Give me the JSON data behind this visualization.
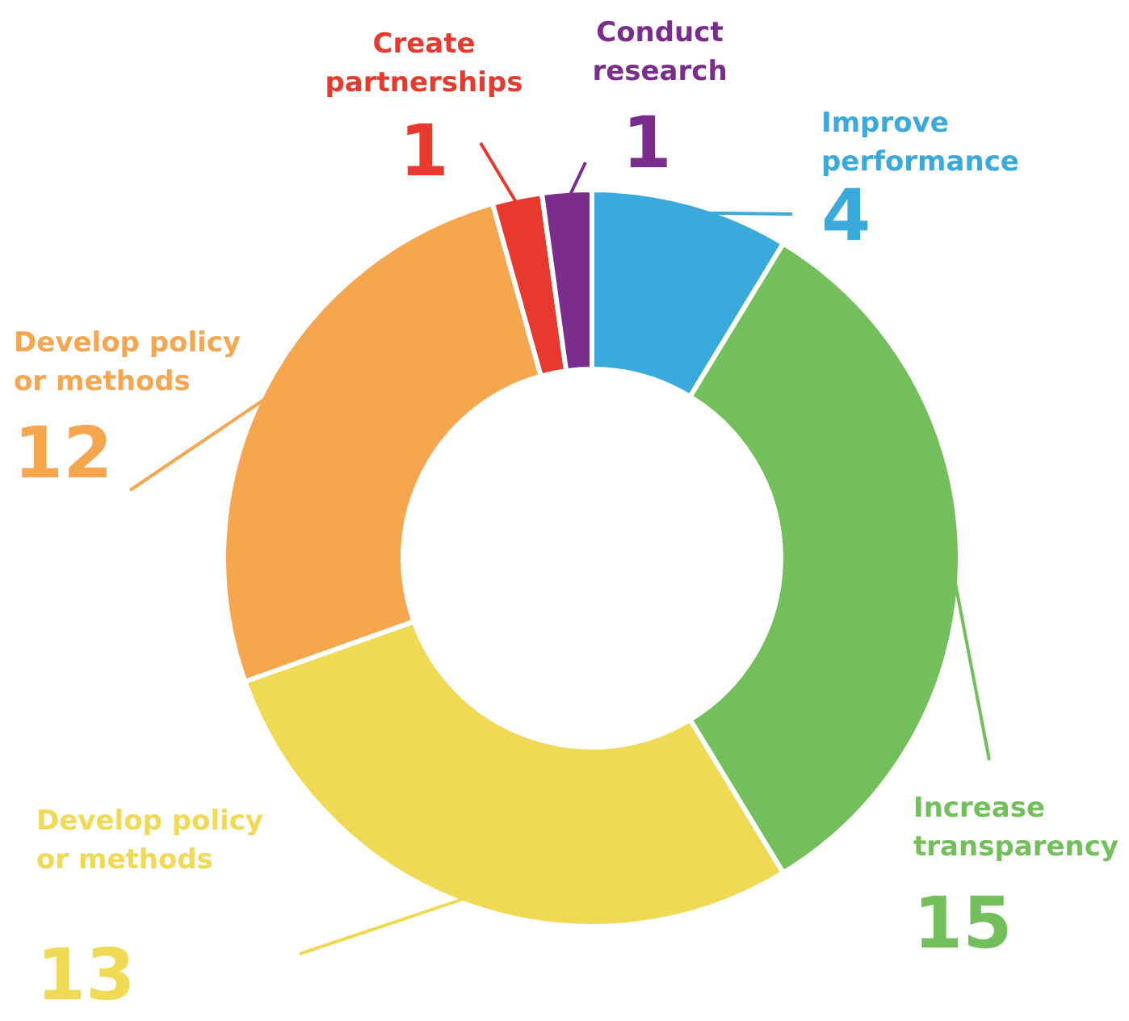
{
  "chart_data": {
    "type": "donut",
    "categories": [
      "Improve performance",
      "Increase transparency",
      "Develop policy or methods",
      "Develop policy or methods",
      "Create partnerships",
      "Conduct research"
    ],
    "values": [
      4,
      15,
      13,
      12,
      1,
      1
    ],
    "colors": [
      "#3aa9dc",
      "#72bf5c",
      "#f0d955",
      "#f7a650",
      "#e8392f",
      "#7b2d8e"
    ],
    "data_labels": true
  }
}
